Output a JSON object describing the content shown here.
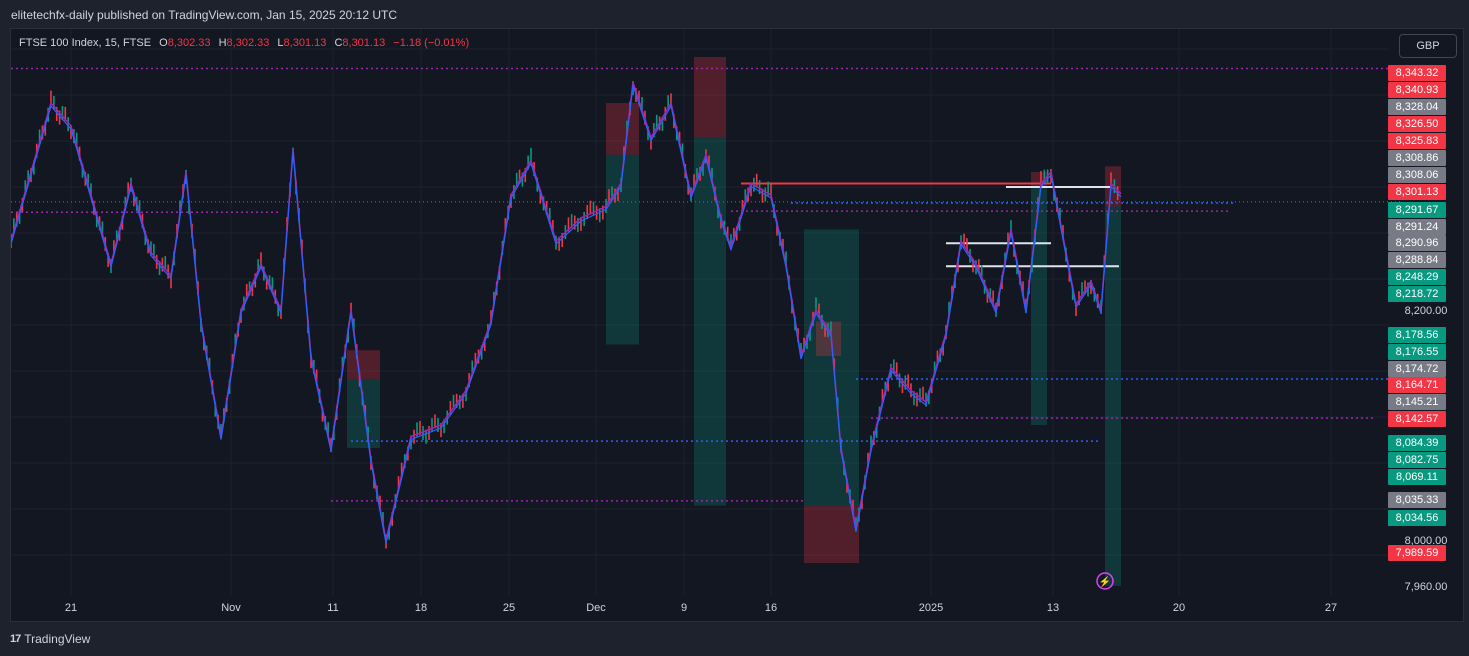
{
  "header": {
    "publisher": "elitetechfx-daily published on TradingView.com, Jan 15, 2025 20:12 UTC"
  },
  "legend": {
    "symbol": "FTSE 100 Index, 15, FTSE",
    "o_label": "O",
    "o": "8,302.33",
    "h_label": "H",
    "h": "8,302.33",
    "l_label": "L",
    "l": "8,301.13",
    "c_label": "C",
    "c": "8,301.13",
    "change": "−1.18 (−0.01%)"
  },
  "currency": "GBP",
  "footer": {
    "brand": "TradingView",
    "logo_glyph": "17"
  },
  "colors": {
    "up": "#089981",
    "down": "#f23645",
    "grey": "#5d606b",
    "ma_blue": "#2962ff",
    "ma_purple": "#9c27b0",
    "bg": "#131722"
  },
  "chart_data": {
    "type": "line",
    "title": "FTSE 100 Index, 15, FTSE",
    "ylim": [
      7960,
      8370
    ],
    "y_ticks": [
      8200,
      8000,
      7960
    ],
    "y_tick_labels": [
      "8,200.00",
      "8,000.00",
      "7,960.00"
    ],
    "x_ticks": [
      "21",
      "Nov",
      "11",
      "18",
      "25",
      "Dec",
      "9",
      "16",
      "2025",
      "13",
      "20",
      "27"
    ],
    "price_labels": [
      {
        "text": "8,343.32",
        "value": 8343.32,
        "color": "red"
      },
      {
        "text": "8,340.93",
        "value": 8340.93,
        "color": "red"
      },
      {
        "text": "8,328.04",
        "value": 8328.04,
        "color": "grey"
      },
      {
        "text": "8,326.50",
        "value": 8326.5,
        "color": "red"
      },
      {
        "text": "8,325.83",
        "value": 8325.83,
        "color": "red"
      },
      {
        "text": "8,308.86",
        "value": 8308.86,
        "color": "grey"
      },
      {
        "text": "8,308.06",
        "value": 8308.06,
        "color": "grey"
      },
      {
        "text": "8,301.13",
        "value": 8301.13,
        "color": "red"
      },
      {
        "text": "8,291.67",
        "value": 8291.67,
        "color": "green"
      },
      {
        "text": "8,291.24",
        "value": 8291.24,
        "color": "grey"
      },
      {
        "text": "8,290.96",
        "value": 8290.96,
        "color": "grey"
      },
      {
        "text": "8,288.84",
        "value": 8288.84,
        "color": "grey"
      },
      {
        "text": "8,248.29",
        "value": 8248.29,
        "color": "green"
      },
      {
        "text": "8,218.72",
        "value": 8218.72,
        "color": "green"
      },
      {
        "text": "8,178.56",
        "value": 8178.56,
        "color": "green"
      },
      {
        "text": "8,176.55",
        "value": 8176.55,
        "color": "green"
      },
      {
        "text": "8,174.72",
        "value": 8174.72,
        "color": "grey"
      },
      {
        "text": "8,164.71",
        "value": 8164.71,
        "color": "red"
      },
      {
        "text": "8,145.21",
        "value": 8145.21,
        "color": "grey"
      },
      {
        "text": "8,142.57",
        "value": 8142.57,
        "color": "red"
      },
      {
        "text": "8,084.39",
        "value": 8084.39,
        "color": "green"
      },
      {
        "text": "8,082.75",
        "value": 8082.75,
        "color": "green"
      },
      {
        "text": "8,069.11",
        "value": 8069.11,
        "color": "green"
      },
      {
        "text": "8,035.33",
        "value": 8035.33,
        "color": "grey"
      },
      {
        "text": "8,034.56",
        "value": 8034.56,
        "color": "green"
      },
      {
        "text": "7,989.59",
        "value": 7989.59,
        "color": "red"
      }
    ],
    "price_path": [
      [
        0,
        8260
      ],
      [
        20,
        8320
      ],
      [
        40,
        8380
      ],
      [
        60,
        8360
      ],
      [
        80,
        8300
      ],
      [
        100,
        8240
      ],
      [
        120,
        8310
      ],
      [
        140,
        8250
      ],
      [
        160,
        8230
      ],
      [
        175,
        8320
      ],
      [
        190,
        8190
      ],
      [
        210,
        8090
      ],
      [
        230,
        8200
      ],
      [
        250,
        8240
      ],
      [
        270,
        8200
      ],
      [
        282,
        8340
      ],
      [
        300,
        8160
      ],
      [
        320,
        8080
      ],
      [
        340,
        8200
      ],
      [
        360,
        8070
      ],
      [
        375,
        8000
      ],
      [
        400,
        8090
      ],
      [
        430,
        8100
      ],
      [
        455,
        8130
      ],
      [
        480,
        8190
      ],
      [
        500,
        8300
      ],
      [
        520,
        8330
      ],
      [
        545,
        8260
      ],
      [
        570,
        8280
      ],
      [
        595,
        8290
      ],
      [
        610,
        8310
      ],
      [
        622,
        8398
      ],
      [
        640,
        8350
      ],
      [
        660,
        8380
      ],
      [
        680,
        8300
      ],
      [
        695,
        8335
      ],
      [
        710,
        8280
      ],
      [
        720,
        8255
      ],
      [
        740,
        8310
      ],
      [
        760,
        8300
      ],
      [
        775,
        8240
      ],
      [
        790,
        8160
      ],
      [
        805,
        8200
      ],
      [
        820,
        8180
      ],
      [
        830,
        8080
      ],
      [
        845,
        8010
      ],
      [
        860,
        8080
      ],
      [
        880,
        8150
      ],
      [
        900,
        8130
      ],
      [
        915,
        8120
      ],
      [
        935,
        8180
      ],
      [
        950,
        8260
      ],
      [
        965,
        8240
      ],
      [
        985,
        8200
      ],
      [
        1000,
        8270
      ],
      [
        1015,
        8200
      ],
      [
        1030,
        8310
      ],
      [
        1040,
        8320
      ],
      [
        1055,
        8250
      ],
      [
        1065,
        8205
      ],
      [
        1080,
        8225
      ],
      [
        1090,
        8200
      ],
      [
        1100,
        8310
      ],
      [
        1110,
        8301
      ]
    ],
    "zones": [
      {
        "x0": 595,
        "x1": 628,
        "y0": 8335,
        "y1": 8380,
        "kind": "red"
      },
      {
        "x0": 595,
        "x1": 628,
        "y0": 8170,
        "y1": 8335,
        "kind": "green"
      },
      {
        "x0": 683,
        "x1": 715,
        "y0": 8350,
        "y1": 8420,
        "kind": "red"
      },
      {
        "x0": 683,
        "x1": 715,
        "y0": 8030,
        "y1": 8350,
        "kind": "green"
      },
      {
        "x0": 336,
        "x1": 369,
        "y0": 8140,
        "y1": 8165,
        "kind": "red"
      },
      {
        "x0": 336,
        "x1": 369,
        "y0": 8080,
        "y1": 8140,
        "kind": "green"
      },
      {
        "x0": 793,
        "x1": 848,
        "y0": 8030,
        "y1": 8270,
        "kind": "green"
      },
      {
        "x0": 793,
        "x1": 848,
        "y0": 7980,
        "y1": 8030,
        "kind": "red"
      },
      {
        "x0": 805,
        "x1": 830,
        "y0": 8160,
        "y1": 8190,
        "kind": "red"
      },
      {
        "x0": 1020,
        "x1": 1036,
        "y0": 8310,
        "y1": 8320,
        "kind": "red"
      },
      {
        "x0": 1020,
        "x1": 1036,
        "y0": 8100,
        "y1": 8310,
        "kind": "green"
      },
      {
        "x0": 1094,
        "x1": 1110,
        "y0": 8290,
        "y1": 8325,
        "kind": "red"
      },
      {
        "x0": 1094,
        "x1": 1110,
        "y0": 7960,
        "y1": 8290,
        "kind": "green"
      }
    ],
    "h_lines": [
      {
        "y": 8410,
        "x0": 0,
        "x1": 1390,
        "kind": "purple_dot"
      },
      {
        "y": 8294,
        "x0": 0,
        "x1": 1390,
        "kind": "red_dot"
      },
      {
        "y": 8285,
        "x0": 0,
        "x1": 270,
        "kind": "purple_dot"
      },
      {
        "y": 8310,
        "x0": 730,
        "x1": 1040,
        "kind": "red_solid"
      },
      {
        "y": 8293,
        "x0": 780,
        "x1": 1225,
        "kind": "blue_dot"
      },
      {
        "y": 8286,
        "x0": 720,
        "x1": 1220,
        "kind": "purple_dot"
      },
      {
        "y": 8307,
        "x0": 995,
        "x1": 1100,
        "kind": "white_solid"
      },
      {
        "y": 8258,
        "x0": 935,
        "x1": 1040,
        "kind": "white_solid"
      },
      {
        "y": 8238,
        "x0": 935,
        "x1": 1108,
        "kind": "white_solid"
      },
      {
        "y": 8140,
        "x0": 845,
        "x1": 1390,
        "kind": "blue_dot"
      },
      {
        "y": 8106,
        "x0": 860,
        "x1": 1365,
        "kind": "purple_dot"
      },
      {
        "y": 8086,
        "x0": 340,
        "x1": 1090,
        "kind": "blue_dot"
      },
      {
        "y": 8034,
        "x0": 320,
        "x1": 795,
        "kind": "purple_dot"
      }
    ]
  }
}
